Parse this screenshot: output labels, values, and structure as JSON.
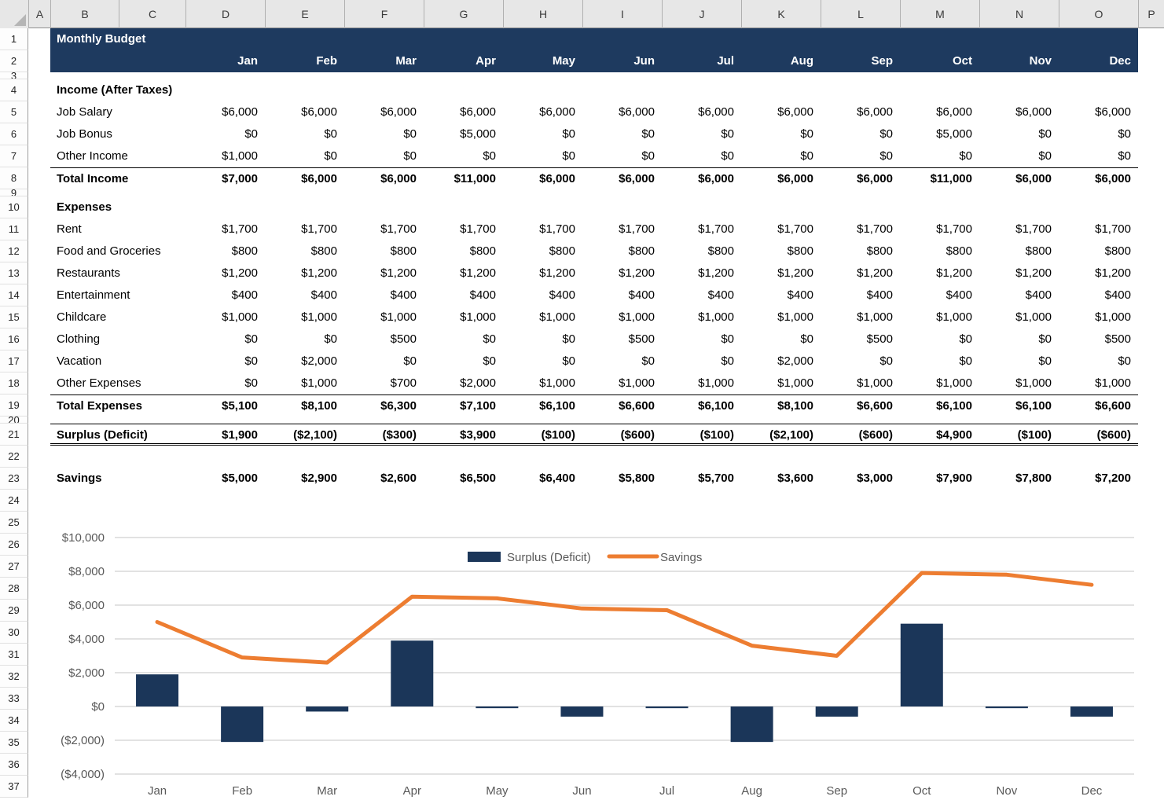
{
  "grid": {
    "columns": [
      "A",
      "B",
      "C",
      "D",
      "E",
      "F",
      "G",
      "H",
      "I",
      "J",
      "K",
      "L",
      "M",
      "N",
      "O",
      "P"
    ],
    "last_row": 37,
    "hidden_rows": [
      3,
      9,
      20
    ]
  },
  "sheet": {
    "title": "Monthly Budget",
    "months": [
      "Jan",
      "Feb",
      "Mar",
      "Apr",
      "May",
      "Jun",
      "Jul",
      "Aug",
      "Sep",
      "Oct",
      "Nov",
      "Dec"
    ],
    "rows": [
      {
        "n": 1,
        "kind": "title"
      },
      {
        "n": 2,
        "kind": "months"
      },
      {
        "n": 3,
        "kind": "hidden"
      },
      {
        "n": 4,
        "kind": "section",
        "label": "Income (After Taxes)"
      },
      {
        "n": 5,
        "kind": "item",
        "label": "Job Salary",
        "values": [
          6000,
          6000,
          6000,
          6000,
          6000,
          6000,
          6000,
          6000,
          6000,
          6000,
          6000,
          6000
        ]
      },
      {
        "n": 6,
        "kind": "item",
        "label": "Job Bonus",
        "values": [
          0,
          0,
          0,
          5000,
          0,
          0,
          0,
          0,
          0,
          5000,
          0,
          0
        ]
      },
      {
        "n": 7,
        "kind": "item",
        "label": "Other Income",
        "values": [
          1000,
          0,
          0,
          0,
          0,
          0,
          0,
          0,
          0,
          0,
          0,
          0
        ]
      },
      {
        "n": 8,
        "kind": "total",
        "label": "Total Income",
        "values": [
          7000,
          6000,
          6000,
          11000,
          6000,
          6000,
          6000,
          6000,
          6000,
          11000,
          6000,
          6000
        ],
        "border_top": true
      },
      {
        "n": 9,
        "kind": "hidden"
      },
      {
        "n": 10,
        "kind": "section",
        "label": "Expenses"
      },
      {
        "n": 11,
        "kind": "item",
        "label": "Rent",
        "values": [
          1700,
          1700,
          1700,
          1700,
          1700,
          1700,
          1700,
          1700,
          1700,
          1700,
          1700,
          1700
        ]
      },
      {
        "n": 12,
        "kind": "item",
        "label": "Food and Groceries",
        "values": [
          800,
          800,
          800,
          800,
          800,
          800,
          800,
          800,
          800,
          800,
          800,
          800
        ]
      },
      {
        "n": 13,
        "kind": "item",
        "label": "Restaurants",
        "values": [
          1200,
          1200,
          1200,
          1200,
          1200,
          1200,
          1200,
          1200,
          1200,
          1200,
          1200,
          1200
        ]
      },
      {
        "n": 14,
        "kind": "item",
        "label": "Entertainment",
        "values": [
          400,
          400,
          400,
          400,
          400,
          400,
          400,
          400,
          400,
          400,
          400,
          400
        ]
      },
      {
        "n": 15,
        "kind": "item",
        "label": "Childcare",
        "values": [
          1000,
          1000,
          1000,
          1000,
          1000,
          1000,
          1000,
          1000,
          1000,
          1000,
          1000,
          1000
        ]
      },
      {
        "n": 16,
        "kind": "item",
        "label": "Clothing",
        "values": [
          0,
          0,
          500,
          0,
          0,
          500,
          0,
          0,
          500,
          0,
          0,
          500
        ]
      },
      {
        "n": 17,
        "kind": "item",
        "label": "Vacation",
        "values": [
          0,
          2000,
          0,
          0,
          0,
          0,
          0,
          2000,
          0,
          0,
          0,
          0
        ]
      },
      {
        "n": 18,
        "kind": "item",
        "label": "Other Expenses",
        "values": [
          0,
          1000,
          700,
          2000,
          1000,
          1000,
          1000,
          1000,
          1000,
          1000,
          1000,
          1000
        ]
      },
      {
        "n": 19,
        "kind": "total",
        "label": "Total Expenses",
        "values": [
          5100,
          8100,
          6300,
          7100,
          6100,
          6600,
          6100,
          8100,
          6600,
          6100,
          6100,
          6600
        ],
        "border_top": true
      },
      {
        "n": 20,
        "kind": "hidden"
      },
      {
        "n": 21,
        "kind": "total",
        "label": "Surplus (Deficit)",
        "values": [
          1900,
          -2100,
          -300,
          3900,
          -100,
          -600,
          -100,
          -2100,
          -600,
          4900,
          -100,
          -600
        ],
        "border_top": true,
        "double_bottom": true
      },
      {
        "n": 22,
        "kind": "empty"
      },
      {
        "n": 23,
        "kind": "total",
        "label": "Savings",
        "values": [
          5000,
          2900,
          2600,
          6500,
          6400,
          5800,
          5700,
          3600,
          3000,
          7900,
          7800,
          7200
        ]
      }
    ]
  },
  "chart_data": {
    "type": "combo",
    "categories": [
      "Jan",
      "Feb",
      "Mar",
      "Apr",
      "May",
      "Jun",
      "Jul",
      "Aug",
      "Sep",
      "Oct",
      "Nov",
      "Dec"
    ],
    "series": [
      {
        "name": "Surplus (Deficit)",
        "type": "bar",
        "color": "#1b3659",
        "values": [
          1900,
          -2100,
          -300,
          3900,
          -100,
          -600,
          -100,
          -2100,
          -600,
          4900,
          -100,
          -600
        ]
      },
      {
        "name": "Savings",
        "type": "line",
        "color": "#ed7d31",
        "values": [
          5000,
          2900,
          2600,
          6500,
          6400,
          5800,
          5700,
          3600,
          3000,
          7900,
          7800,
          7200
        ]
      }
    ],
    "ylim": [
      -4000,
      10000
    ],
    "ytick_step": 2000,
    "ytick_labels": [
      "$10,000",
      "$8,000",
      "$6,000",
      "$4,000",
      "$2,000",
      "$0",
      "($2,000)",
      "($4,000)"
    ],
    "grid": true,
    "legend_position": "top",
    "axis_text_color": "#595959",
    "gridline_color": "#d9d9d9"
  },
  "colors": {
    "band_navy": "#1e3a5f",
    "bar_navy": "#1b3659",
    "line_orange": "#ed7d31"
  }
}
